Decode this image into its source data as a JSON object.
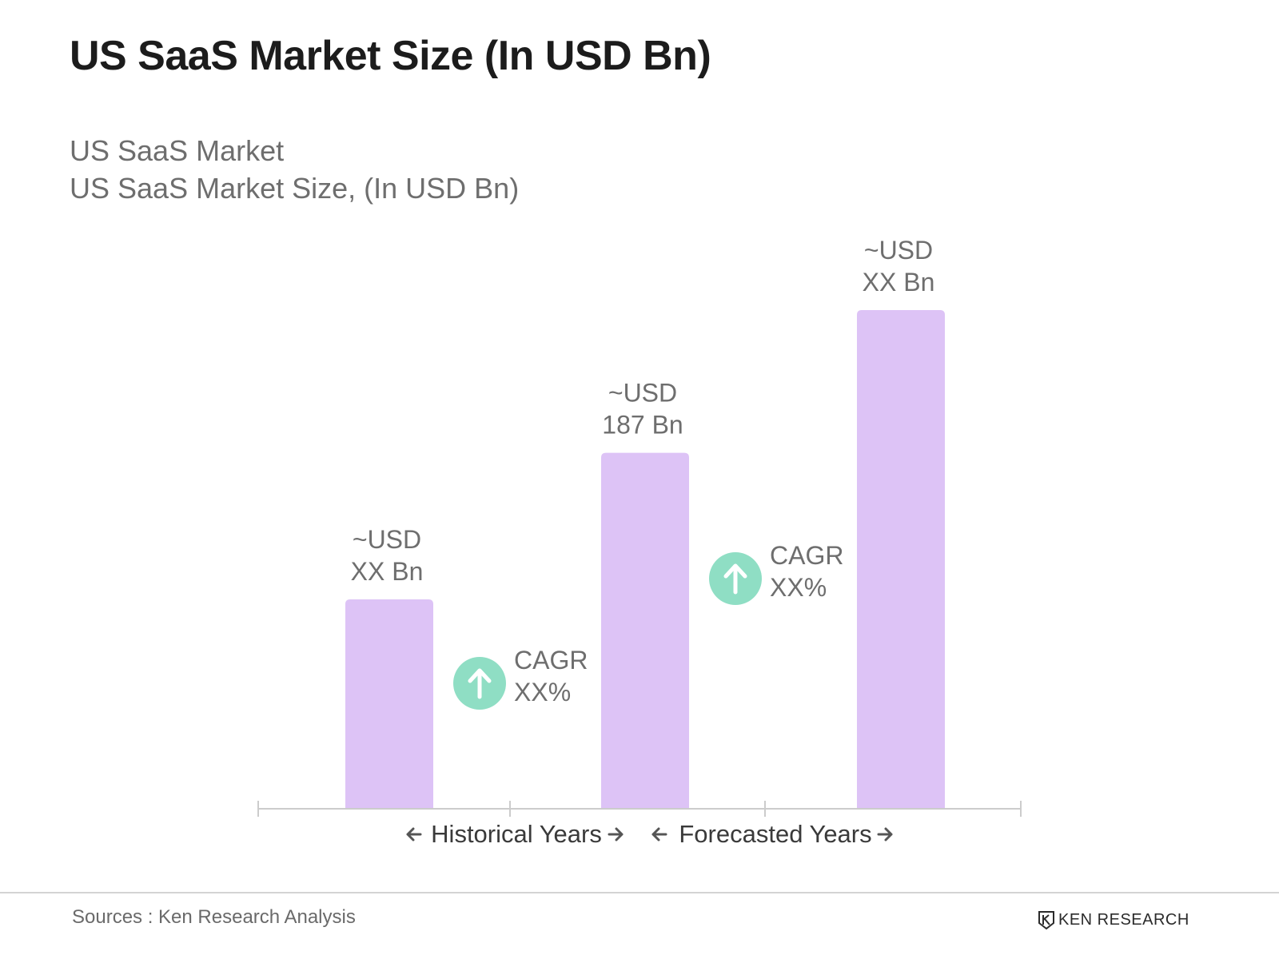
{
  "title": "US SaaS Market Size (In USD Bn)",
  "subtitle_1": "US SaaS Market",
  "subtitle_2": "US SaaS Market Size, (In USD Bn)",
  "colors": {
    "bar": "#ddc3f6",
    "cagr_circle": "#8fdec4",
    "axis": "#cccccc",
    "text_gray": "#6e6e6e",
    "text_dark": "#1c1c1c"
  },
  "chart_data": {
    "type": "bar",
    "title": "US SaaS Market Size (In USD Bn)",
    "categories": [
      "",
      "",
      ""
    ],
    "values": [
      110,
      187,
      262
    ],
    "ylim": [
      0,
      262
    ],
    "data_labels": [
      [
        "~USD",
        "XX Bn"
      ],
      [
        "~USD",
        "187 Bn"
      ],
      [
        "~USD",
        "XX Bn"
      ]
    ],
    "cagr_labels": [
      [
        "CAGR",
        "XX%"
      ],
      [
        "CAGR",
        "XX%"
      ]
    ],
    "period_labels": [
      "Historical Years",
      "Forecasted Years"
    ],
    "grid": false,
    "legend": "none"
  },
  "source": "Sources : Ken Research Analysis",
  "logo_text": "KEN RESEARCH",
  "icons": {
    "cagr": "arrow-up-icon",
    "period_left": "arrow-left-icon",
    "period_right": "arrow-right-icon",
    "logo": "ken-research-logo-icon"
  }
}
